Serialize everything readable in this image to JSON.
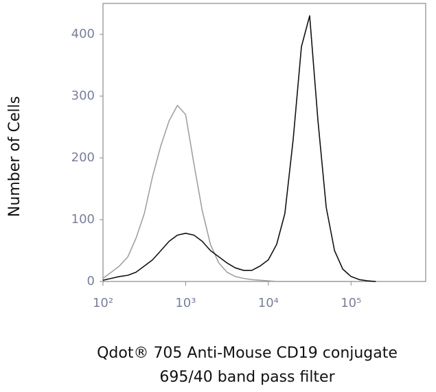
{
  "chart_data": {
    "type": "line",
    "ylabel": "Number of Cells",
    "xlabel": [
      "Qdot® 705 Anti-Mouse CD19 conjugate",
      "695/40 band pass filter"
    ],
    "xscale": "log",
    "xlim": [
      100,
      800000
    ],
    "ylim": [
      0,
      450
    ],
    "xticks": [
      {
        "value": 100,
        "label": "10²"
      },
      {
        "value": 1000,
        "label": "10³"
      },
      {
        "value": 10000,
        "label": "10⁴"
      },
      {
        "value": 100000,
        "label": "10⁵"
      }
    ],
    "yticks": [
      0,
      100,
      200,
      300,
      400
    ],
    "x": [
      100,
      126,
      158,
      200,
      251,
      316,
      398,
      501,
      631,
      794,
      1000,
      1259,
      1585,
      1995,
      2512,
      3162,
      3981,
      5012,
      6310,
      7943,
      10000,
      12589,
      15849,
      19953,
      25119,
      31623,
      39811,
      50119,
      63096,
      79433,
      100000,
      125893,
      158489,
      199526
    ],
    "series": [
      {
        "color": "#a0a0a0",
        "values": [
          5,
          15,
          25,
          40,
          70,
          110,
          170,
          220,
          260,
          285,
          270,
          190,
          115,
          60,
          30,
          15,
          8,
          5,
          3,
          2,
          1,
          0,
          0,
          0,
          0,
          0,
          0,
          0,
          0,
          0,
          0,
          0,
          0,
          0
        ]
      },
      {
        "color": "#111111",
        "values": [
          2,
          5,
          8,
          10,
          15,
          25,
          35,
          50,
          65,
          75,
          78,
          75,
          65,
          50,
          40,
          30,
          22,
          18,
          18,
          25,
          35,
          60,
          110,
          230,
          380,
          430,
          260,
          120,
          50,
          20,
          8,
          3,
          1,
          0
        ]
      }
    ]
  }
}
